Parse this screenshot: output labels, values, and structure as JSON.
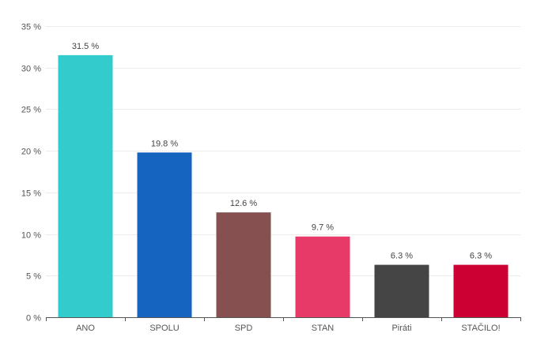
{
  "chart_data": {
    "type": "bar",
    "categories": [
      "ANO",
      "SPOLU",
      "SPD",
      "STAN",
      "Piráti",
      "STAČILO!"
    ],
    "values": [
      31.5,
      19.8,
      12.6,
      9.7,
      6.3,
      6.3
    ],
    "value_labels": [
      "31.5 %",
      "19.8 %",
      "12.6 %",
      "9.7 %",
      "6.3 %",
      "6.3 %"
    ],
    "colors": [
      "#33cccc",
      "#1565c0",
      "#875050",
      "#e83a68",
      "#454545",
      "#cc0033"
    ],
    "y_ticks": [
      0,
      5,
      10,
      15,
      20,
      25,
      30,
      35
    ],
    "y_tick_labels": [
      "0 %",
      "5 %",
      "10 %",
      "15 %",
      "20 %",
      "25 %",
      "30 %",
      "35 %"
    ],
    "ylim": [
      0,
      35
    ],
    "title": "",
    "xlabel": "",
    "ylabel": "",
    "grid": true,
    "legend": "none"
  }
}
